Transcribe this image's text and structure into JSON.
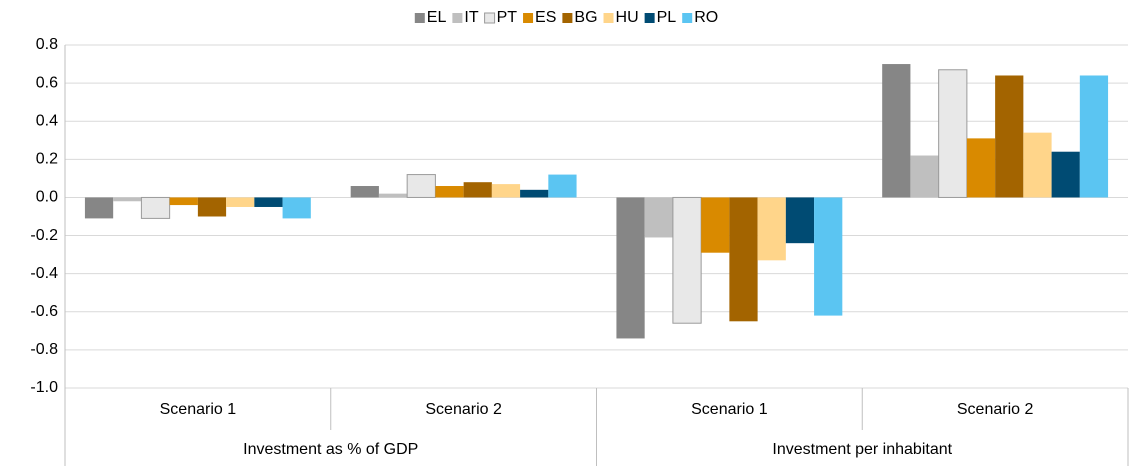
{
  "chart_data": {
    "type": "bar",
    "categories": [
      "Scenario 1",
      "Scenario 2",
      "Scenario 1",
      "Scenario 2"
    ],
    "groups": [
      "Investment as % of GDP",
      "Investment per inhabitant"
    ],
    "series": [
      {
        "name": "EL",
        "color": "#868686",
        "values": [
          -0.11,
          0.06,
          -0.74,
          0.7
        ]
      },
      {
        "name": "IT",
        "color": "#bfbfbf",
        "values": [
          -0.02,
          0.02,
          -0.21,
          0.22
        ]
      },
      {
        "name": "PT",
        "color": "#e8e8e8",
        "values": [
          -0.11,
          0.12,
          -0.66,
          0.67
        ]
      },
      {
        "name": "ES",
        "color": "#d98a00",
        "values": [
          -0.04,
          0.06,
          -0.29,
          0.31
        ]
      },
      {
        "name": "BG",
        "color": "#a36400",
        "values": [
          -0.1,
          0.08,
          -0.65,
          0.64
        ]
      },
      {
        "name": "HU",
        "color": "#ffd58a",
        "values": [
          -0.05,
          0.07,
          -0.33,
          0.34
        ]
      },
      {
        "name": "PL",
        "color": "#004b73",
        "values": [
          -0.05,
          0.04,
          -0.24,
          0.24
        ]
      },
      {
        "name": "RO",
        "color": "#5bc5f2",
        "values": [
          -0.11,
          0.12,
          -0.62,
          0.64
        ]
      }
    ],
    "ylim": [
      -1,
      0.8
    ],
    "yticks": [
      {
        "value": -1,
        "label": "-1.0"
      },
      -0.8,
      -0.6,
      -0.4,
      -0.2,
      {
        "value": 0,
        "label": "0.0"
      },
      0.2,
      0.4,
      0.6,
      0.8
    ],
    "grid": true,
    "legend": "top"
  }
}
